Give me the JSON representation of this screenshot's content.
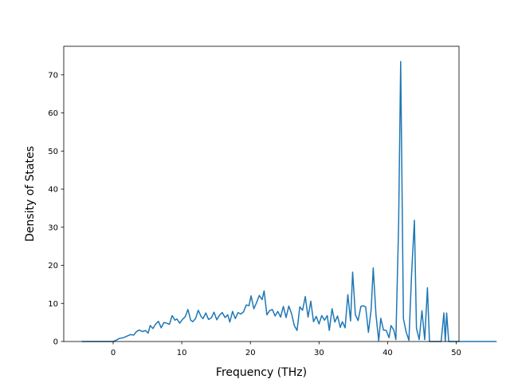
{
  "chart_data": {
    "type": "line",
    "title": "",
    "xlabel": "Frequency (THz)",
    "ylabel": "Density of States",
    "xlim": [
      -7.2,
      50.4
    ],
    "ylim": [
      0,
      77.5
    ],
    "grid": false,
    "legend": "none",
    "xticks": [
      0,
      10,
      20,
      30,
      40,
      50
    ],
    "yticks": [
      0,
      10,
      20,
      30,
      40,
      50,
      60,
      70
    ],
    "xtick_labels": [
      "0",
      "10",
      "20",
      "30",
      "40",
      "50"
    ],
    "ytick_labels": [
      "0",
      "10",
      "20",
      "30",
      "40",
      "50",
      "60",
      "70"
    ],
    "series": [
      {
        "color": "#1f77b4",
        "points": [
          [
            -4.5,
            0
          ],
          [
            0,
            0
          ],
          [
            0.4,
            0.3
          ],
          [
            0.9,
            0.8
          ],
          [
            1.5,
            1.0
          ],
          [
            2.0,
            1.4
          ],
          [
            2.5,
            1.8
          ],
          [
            3.0,
            1.7
          ],
          [
            3.4,
            2.6
          ],
          [
            3.8,
            3.0
          ],
          [
            4.3,
            2.6
          ],
          [
            4.7,
            2.9
          ],
          [
            5.1,
            2.2
          ],
          [
            5.4,
            4.2
          ],
          [
            5.8,
            3.4
          ],
          [
            6.2,
            4.6
          ],
          [
            6.6,
            5.3
          ],
          [
            7.0,
            3.6
          ],
          [
            7.4,
            5.0
          ],
          [
            7.8,
            4.8
          ],
          [
            8.2,
            4.5
          ],
          [
            8.6,
            6.8
          ],
          [
            9.0,
            5.6
          ],
          [
            9.3,
            5.9
          ],
          [
            9.7,
            4.8
          ],
          [
            10.1,
            5.8
          ],
          [
            10.5,
            6.5
          ],
          [
            10.9,
            8.4
          ],
          [
            11.3,
            5.6
          ],
          [
            11.6,
            5.2
          ],
          [
            12.0,
            6.0
          ],
          [
            12.4,
            8.2
          ],
          [
            12.8,
            6.6
          ],
          [
            13.1,
            6.0
          ],
          [
            13.5,
            7.5
          ],
          [
            13.9,
            5.8
          ],
          [
            14.3,
            6.2
          ],
          [
            14.7,
            7.7
          ],
          [
            15.1,
            5.7
          ],
          [
            15.5,
            6.9
          ],
          [
            15.9,
            7.6
          ],
          [
            16.3,
            6.3
          ],
          [
            16.7,
            7.0
          ],
          [
            17.0,
            5.1
          ],
          [
            17.4,
            7.9
          ],
          [
            17.8,
            6.0
          ],
          [
            18.2,
            7.6
          ],
          [
            18.6,
            7.2
          ],
          [
            19.0,
            7.8
          ],
          [
            19.4,
            9.6
          ],
          [
            19.8,
            9.4
          ],
          [
            20.1,
            12.0
          ],
          [
            20.5,
            8.6
          ],
          [
            20.9,
            10.2
          ],
          [
            21.3,
            12.1
          ],
          [
            21.7,
            11.0
          ],
          [
            22.0,
            13.3
          ],
          [
            22.4,
            7.0
          ],
          [
            22.8,
            8.1
          ],
          [
            23.2,
            8.4
          ],
          [
            23.6,
            6.7
          ],
          [
            24.0,
            7.9
          ],
          [
            24.4,
            6.4
          ],
          [
            24.8,
            9.2
          ],
          [
            25.2,
            6.3
          ],
          [
            25.6,
            9.3
          ],
          [
            26.0,
            7.3
          ],
          [
            26.4,
            4.2
          ],
          [
            26.8,
            2.9
          ],
          [
            27.2,
            9.1
          ],
          [
            27.6,
            8.2
          ],
          [
            28.0,
            11.8
          ],
          [
            28.4,
            6.4
          ],
          [
            28.8,
            10.6
          ],
          [
            29.2,
            5.2
          ],
          [
            29.6,
            6.6
          ],
          [
            30.0,
            4.6
          ],
          [
            30.4,
            6.8
          ],
          [
            30.8,
            5.6
          ],
          [
            31.2,
            6.8
          ],
          [
            31.5,
            2.9
          ],
          [
            31.9,
            8.6
          ],
          [
            32.3,
            5.1
          ],
          [
            32.7,
            6.7
          ],
          [
            33.1,
            3.7
          ],
          [
            33.4,
            5.2
          ],
          [
            33.8,
            3.6
          ],
          [
            34.2,
            12.3
          ],
          [
            34.6,
            5.4
          ],
          [
            34.9,
            18.2
          ],
          [
            35.3,
            7.0
          ],
          [
            35.7,
            5.5
          ],
          [
            36.1,
            9.2
          ],
          [
            36.4,
            9.4
          ],
          [
            36.8,
            9.1
          ],
          [
            37.2,
            2.4
          ],
          [
            37.6,
            8.4
          ],
          [
            37.9,
            19.3
          ],
          [
            38.3,
            7.0
          ],
          [
            38.7,
            0.2
          ],
          [
            39.0,
            6.1
          ],
          [
            39.4,
            3.0
          ],
          [
            39.8,
            2.9
          ],
          [
            40.2,
            1.0
          ],
          [
            40.5,
            4.2
          ],
          [
            40.9,
            3.0
          ],
          [
            41.2,
            0.5
          ],
          [
            41.6,
            30.5
          ],
          [
            41.9,
            73.5
          ],
          [
            42.3,
            6.0
          ],
          [
            42.7,
            2.5
          ],
          [
            43.1,
            0.3
          ],
          [
            43.5,
            18.0
          ],
          [
            43.9,
            31.8
          ],
          [
            44.2,
            3.5
          ],
          [
            44.6,
            0.5
          ],
          [
            45.0,
            8.1
          ],
          [
            45.4,
            0.5
          ],
          [
            45.8,
            14.1
          ],
          [
            46.1,
            0
          ],
          [
            47.8,
            0
          ],
          [
            48.2,
            7.5
          ],
          [
            48.4,
            0
          ],
          [
            48.6,
            7.5
          ],
          [
            48.9,
            0
          ],
          [
            55.8,
            0
          ]
        ]
      }
    ]
  }
}
